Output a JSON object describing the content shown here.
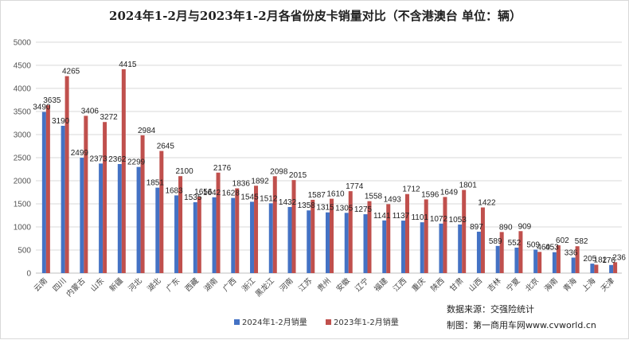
{
  "chart_data": {
    "type": "bar",
    "title": "2024年1-2月与2023年1-2月各省份皮卡销量对比（不含港澳台 单位：辆）",
    "categories": [
      "云南",
      "四川",
      "内蒙古",
      "山东",
      "新疆",
      "河北",
      "湖北",
      "广东",
      "西藏",
      "湖南",
      "广西",
      "浙江",
      "黑龙江",
      "河南",
      "江苏",
      "贵州",
      "安徽",
      "辽宁",
      "福建",
      "江西",
      "重庆",
      "陕西",
      "甘肃",
      "山西",
      "吉林",
      "宁夏",
      "北京",
      "海南",
      "青海",
      "上海",
      "天津"
    ],
    "series": [
      {
        "name": "2024年1-2月销量",
        "color": "#4472c4",
        "values": [
          3490,
          3190,
          2499,
          2373,
          2362,
          2299,
          1851,
          1683,
          1535,
          1642,
          1628,
          1545,
          1512,
          1432,
          1358,
          1315,
          1305,
          1275,
          1141,
          1137,
          1101,
          1072,
          1053,
          897,
          589,
          552,
          509,
          453,
          336,
          205,
          176
        ]
      },
      {
        "name": "2023年1-2月销量",
        "color": "#c0504d",
        "values": [
          3635,
          4265,
          3406,
          3272,
          4415,
          2984,
          2645,
          2100,
          1656,
          2176,
          1836,
          1892,
          2098,
          2015,
          1587,
          1610,
          1774,
          1558,
          1493,
          1712,
          1596,
          1649,
          1801,
          1422,
          890,
          909,
          460,
          602,
          582,
          182,
          236
        ]
      }
    ],
    "ylim": [
      0,
      5000
    ],
    "yticks": [
      0,
      500,
      1000,
      1500,
      2000,
      2500,
      3000,
      3500,
      4000,
      4500,
      5000
    ],
    "grid": true,
    "legend_position": "bottom"
  },
  "source_text": "数据来源：交强险统计",
  "credit_text": "制图：第一商用车网www.cvworld.cn"
}
